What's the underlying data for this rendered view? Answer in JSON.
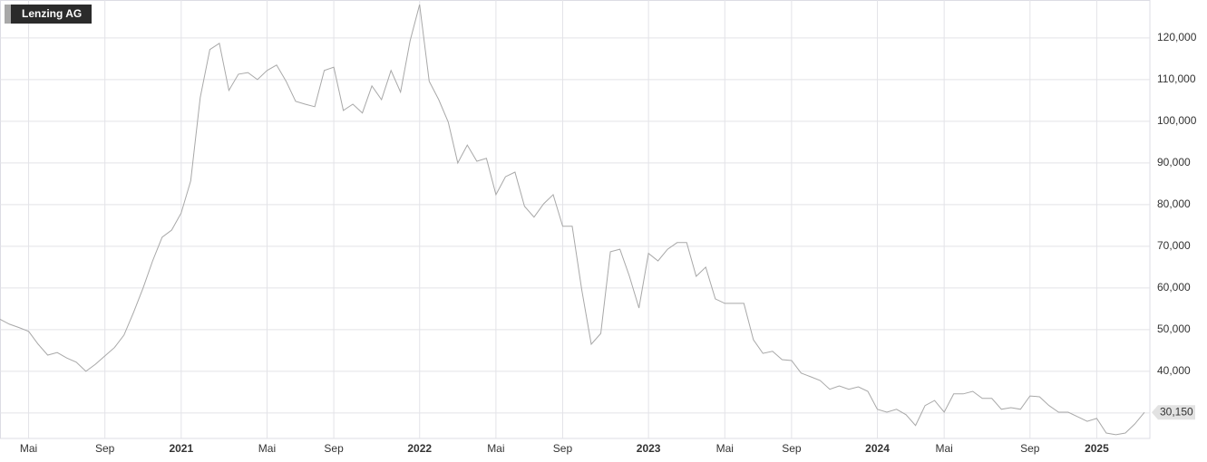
{
  "chart_data": {
    "type": "line",
    "categories": [
      null,
      null,
      null,
      "Mai",
      null,
      null,
      null,
      null,
      null,
      null,
      null,
      "Sep",
      null,
      null,
      null,
      null,
      null,
      null,
      null,
      "2021",
      null,
      null,
      null,
      null,
      null,
      null,
      null,
      null,
      "Mai",
      null,
      null,
      null,
      null,
      null,
      null,
      "Sep",
      null,
      null,
      null,
      null,
      null,
      null,
      null,
      null,
      "2022",
      null,
      null,
      null,
      null,
      null,
      null,
      null,
      "Mai",
      null,
      null,
      null,
      null,
      null,
      null,
      "Sep",
      null,
      null,
      null,
      null,
      null,
      null,
      null,
      null,
      "2023",
      null,
      null,
      null,
      null,
      null,
      null,
      null,
      "Mai",
      null,
      null,
      null,
      null,
      null,
      null,
      "Sep",
      null,
      null,
      null,
      null,
      null,
      null,
      null,
      null,
      "2024",
      null,
      null,
      null,
      null,
      null,
      null,
      "Mai",
      null,
      null,
      null,
      null,
      null,
      null,
      null,
      null,
      "Sep",
      null,
      null,
      null,
      null,
      null,
      null,
      "2025",
      null,
      null,
      null,
      null,
      null
    ],
    "series": [
      {
        "name": "Lenzing AG",
        "color": "#a8a8a8",
        "values": [
          52500,
          51300,
          50500,
          49600,
          46500,
          43900,
          44500,
          43200,
          42200,
          40000,
          41700,
          43700,
          45700,
          48700,
          54100,
          60000,
          66500,
          72200,
          73900,
          78000,
          85700,
          105700,
          117200,
          118700,
          107400,
          111300,
          111700,
          110000,
          112200,
          113500,
          109600,
          104800,
          104100,
          103500,
          112200,
          113000,
          102600,
          104100,
          102000,
          108500,
          105200,
          112200,
          107000,
          119300,
          128000,
          109600,
          105200,
          99800,
          90000,
          94300,
          90400,
          91100,
          82400,
          86700,
          87800,
          79600,
          77000,
          80200,
          82400,
          74800,
          74800,
          59600,
          46500,
          49100,
          68700,
          69300,
          62800,
          55200,
          68300,
          66500,
          69300,
          70900,
          70900,
          62800,
          65000,
          57400,
          56300,
          56300,
          56300,
          47600,
          44300,
          44800,
          42800,
          42600,
          39600,
          38700,
          37800,
          35700,
          36500,
          35700,
          36300,
          35200,
          30900,
          30200,
          30900,
          29600,
          27000,
          31800,
          33000,
          30200,
          34600,
          34600,
          35200,
          33500,
          33500,
          30900,
          31300,
          30900,
          34100,
          33900,
          31800,
          30200,
          30200,
          29100,
          28000,
          28700,
          25200,
          24800,
          25200,
          27400,
          30150
        ]
      }
    ],
    "last_label": {
      "value": 30150,
      "label": "30,150"
    },
    "ylim": [
      23900,
      129100
    ],
    "yticks": [
      {
        "value": 30000,
        "label": null
      },
      {
        "value": 40000,
        "label": "40,000"
      },
      {
        "value": 50000,
        "label": "50,000"
      },
      {
        "value": 60000,
        "label": "60,000"
      },
      {
        "value": 70000,
        "label": "70,000"
      },
      {
        "value": 80000,
        "label": "80,000"
      },
      {
        "value": 90000,
        "label": "90,000"
      },
      {
        "value": 100000,
        "label": "100,000"
      },
      {
        "value": 110000,
        "label": "110,000"
      },
      {
        "value": 120000,
        "label": "120,000"
      }
    ],
    "grid": true
  }
}
